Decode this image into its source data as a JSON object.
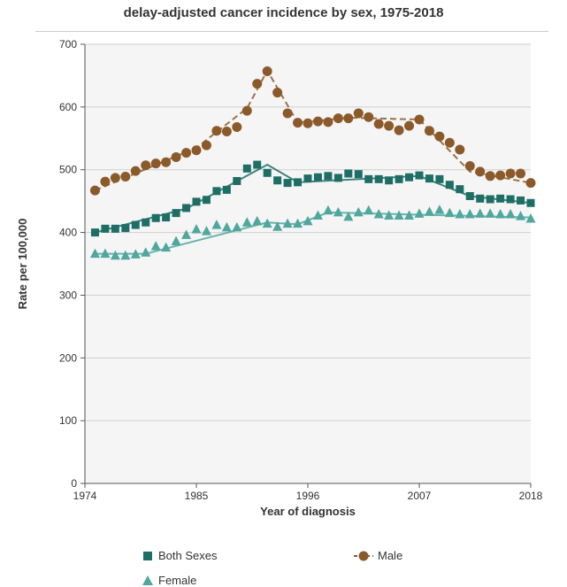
{
  "chart_data": {
    "type": "line",
    "title": "delay-adjusted cancer incidence by sex, 1975-2018",
    "xlabel": "Year of diagnosis",
    "ylabel": "Rate per 100,000",
    "xlim": [
      1974,
      2018
    ],
    "ylim": [
      0,
      700
    ],
    "x_ticks": [
      1974,
      1985,
      1996,
      2007,
      2018
    ],
    "y_ticks": [
      0,
      100,
      200,
      300,
      400,
      500,
      600,
      700
    ],
    "grid": true,
    "legend_position": "bottom",
    "x": [
      1975,
      1976,
      1977,
      1978,
      1979,
      1980,
      1981,
      1982,
      1983,
      1984,
      1985,
      1986,
      1987,
      1988,
      1989,
      1990,
      1991,
      1992,
      1993,
      1994,
      1995,
      1996,
      1997,
      1998,
      1999,
      2000,
      2001,
      2002,
      2003,
      2004,
      2005,
      2006,
      2007,
      2008,
      2009,
      2010,
      2011,
      2012,
      2013,
      2014,
      2015,
      2016,
      2017,
      2018
    ],
    "series": [
      {
        "name": "Both Sexes",
        "color": "#1f6e65",
        "marker": "square",
        "values": [
          400,
          406,
          406,
          407,
          412,
          416,
          423,
          424,
          431,
          439,
          449,
          452,
          466,
          468,
          482,
          502,
          508,
          495,
          483,
          479,
          480,
          486,
          488,
          490,
          487,
          494,
          493,
          485,
          485,
          483,
          485,
          488,
          491,
          486,
          485,
          476,
          469,
          458,
          454,
          453,
          454,
          453,
          451,
          447
        ],
        "trend": [
          [
            1975,
            400
          ],
          [
            1984,
            438
          ],
          [
            1992,
            508
          ],
          [
            1995,
            480
          ],
          [
            2007,
            490
          ],
          [
            2012,
            458
          ],
          [
            2018,
            447
          ]
        ]
      },
      {
        "name": "Male",
        "color": "#8b5a2b",
        "marker": "circle",
        "values": [
          467,
          481,
          487,
          489,
          498,
          507,
          510,
          512,
          520,
          527,
          531,
          539,
          562,
          561,
          568,
          594,
          637,
          657,
          623,
          590,
          575,
          574,
          577,
          576,
          582,
          582,
          590,
          584,
          573,
          570,
          563,
          570,
          580,
          562,
          553,
          543,
          532,
          506,
          497,
          490,
          491,
          494,
          494,
          479
        ],
        "trend": [
          [
            1975,
            467
          ],
          [
            1985,
            535
          ],
          [
            1990,
            598
          ],
          [
            1992,
            658
          ],
          [
            1995,
            575
          ],
          [
            2000,
            583
          ],
          [
            2007,
            580
          ],
          [
            2012,
            497
          ],
          [
            2018,
            479
          ]
        ]
      },
      {
        "name": "Female",
        "color": "#4fa79d",
        "marker": "triangle",
        "values": [
          366,
          366,
          363,
          363,
          365,
          368,
          378,
          376,
          386,
          396,
          405,
          402,
          412,
          408,
          408,
          416,
          418,
          414,
          409,
          414,
          414,
          418,
          427,
          435,
          432,
          425,
          432,
          435,
          429,
          427,
          427,
          427,
          430,
          433,
          436,
          431,
          429,
          429,
          430,
          430,
          429,
          429,
          426,
          422
        ],
        "trend": [
          [
            1975,
            366
          ],
          [
            1980,
            366
          ],
          [
            1992,
            416
          ],
          [
            1995,
            413
          ],
          [
            1998,
            432
          ],
          [
            2018,
            424
          ]
        ]
      }
    ]
  }
}
